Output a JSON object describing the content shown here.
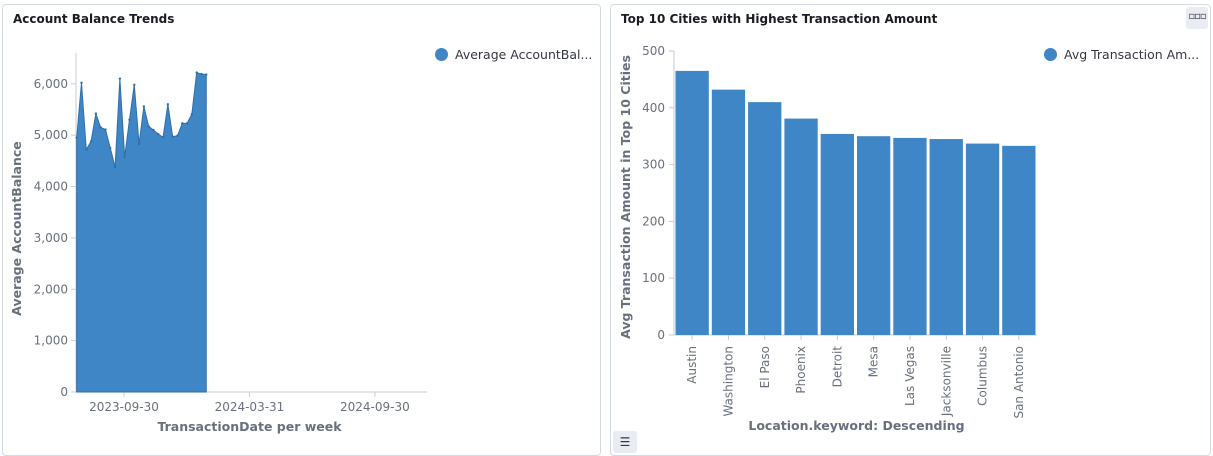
{
  "left_panel": {
    "title": "Account Balance Trends",
    "legend_label": "Average AccountBalance",
    "legend_label_display": "Average AccountBal...",
    "color": "#3f86c6"
  },
  "right_panel": {
    "title": "Top 10 Cities with Highest Transaction Amount",
    "legend_label": "Avg Transaction Amount in Top 10 Cities",
    "legend_label_display": "Avg Transaction Am...",
    "color": "#3f86c6",
    "options_icon": "ellipsis-icon",
    "legend_toggle_icon": "list-icon"
  },
  "chart_data": [
    {
      "type": "area",
      "title": "Account Balance Trends",
      "xlabel": "TransactionDate per week",
      "ylabel": "Average AccountBalance",
      "x_tick_labels": [
        "2023-09-30",
        "2024-03-31",
        "2024-09-30"
      ],
      "y_ticks": [
        "0",
        "1,000",
        "2,000",
        "3,000",
        "4,000",
        "5,000",
        "6,000"
      ],
      "ylim": [
        0,
        6600
      ],
      "xlim": [
        "2023-07-22",
        "2024-12-15"
      ],
      "series": [
        {
          "name": "Average AccountBalance",
          "x": [
            "2023-07-23",
            "2023-07-30",
            "2023-08-06",
            "2023-08-13",
            "2023-08-20",
            "2023-08-27",
            "2023-09-03",
            "2023-09-10",
            "2023-09-17",
            "2023-09-24",
            "2023-10-01",
            "2023-10-08",
            "2023-10-15",
            "2023-10-22",
            "2023-10-29",
            "2023-11-05",
            "2023-11-12",
            "2023-11-19",
            "2023-11-26",
            "2023-12-03",
            "2023-12-10",
            "2023-12-17",
            "2023-12-24",
            "2023-12-31",
            "2024-01-07",
            "2024-01-14",
            "2024-01-21",
            "2024-01-28"
          ],
          "y": [
            4950,
            6020,
            4720,
            4880,
            5420,
            5150,
            5110,
            4750,
            4380,
            6100,
            4580,
            5300,
            5980,
            4830,
            5560,
            5170,
            5100,
            5020,
            4960,
            5600,
            4970,
            4990,
            5230,
            5230,
            5410,
            6220,
            6190,
            6180
          ]
        }
      ],
      "grid": false
    },
    {
      "type": "bar",
      "title": "Top 10 Cities with Highest Transaction Amount",
      "xlabel": "Location.keyword: Descending",
      "ylabel": "Avg Transaction Amount in Top 10 Cities",
      "categories": [
        "Austin",
        "Washington",
        "El Paso",
        "Phoenix",
        "Detroit",
        "Mesa",
        "Las Vegas",
        "Jacksonville",
        "Columbus",
        "San Antonio"
      ],
      "y_ticks": [
        "0",
        "100",
        "200",
        "300",
        "400",
        "500"
      ],
      "ylim": [
        0,
        500
      ],
      "series": [
        {
          "name": "Avg Transaction Amount in Top 10 Cities",
          "values": [
            465,
            432,
            410,
            381,
            354,
            350,
            347,
            345,
            337,
            333
          ]
        }
      ],
      "grid": false
    }
  ]
}
